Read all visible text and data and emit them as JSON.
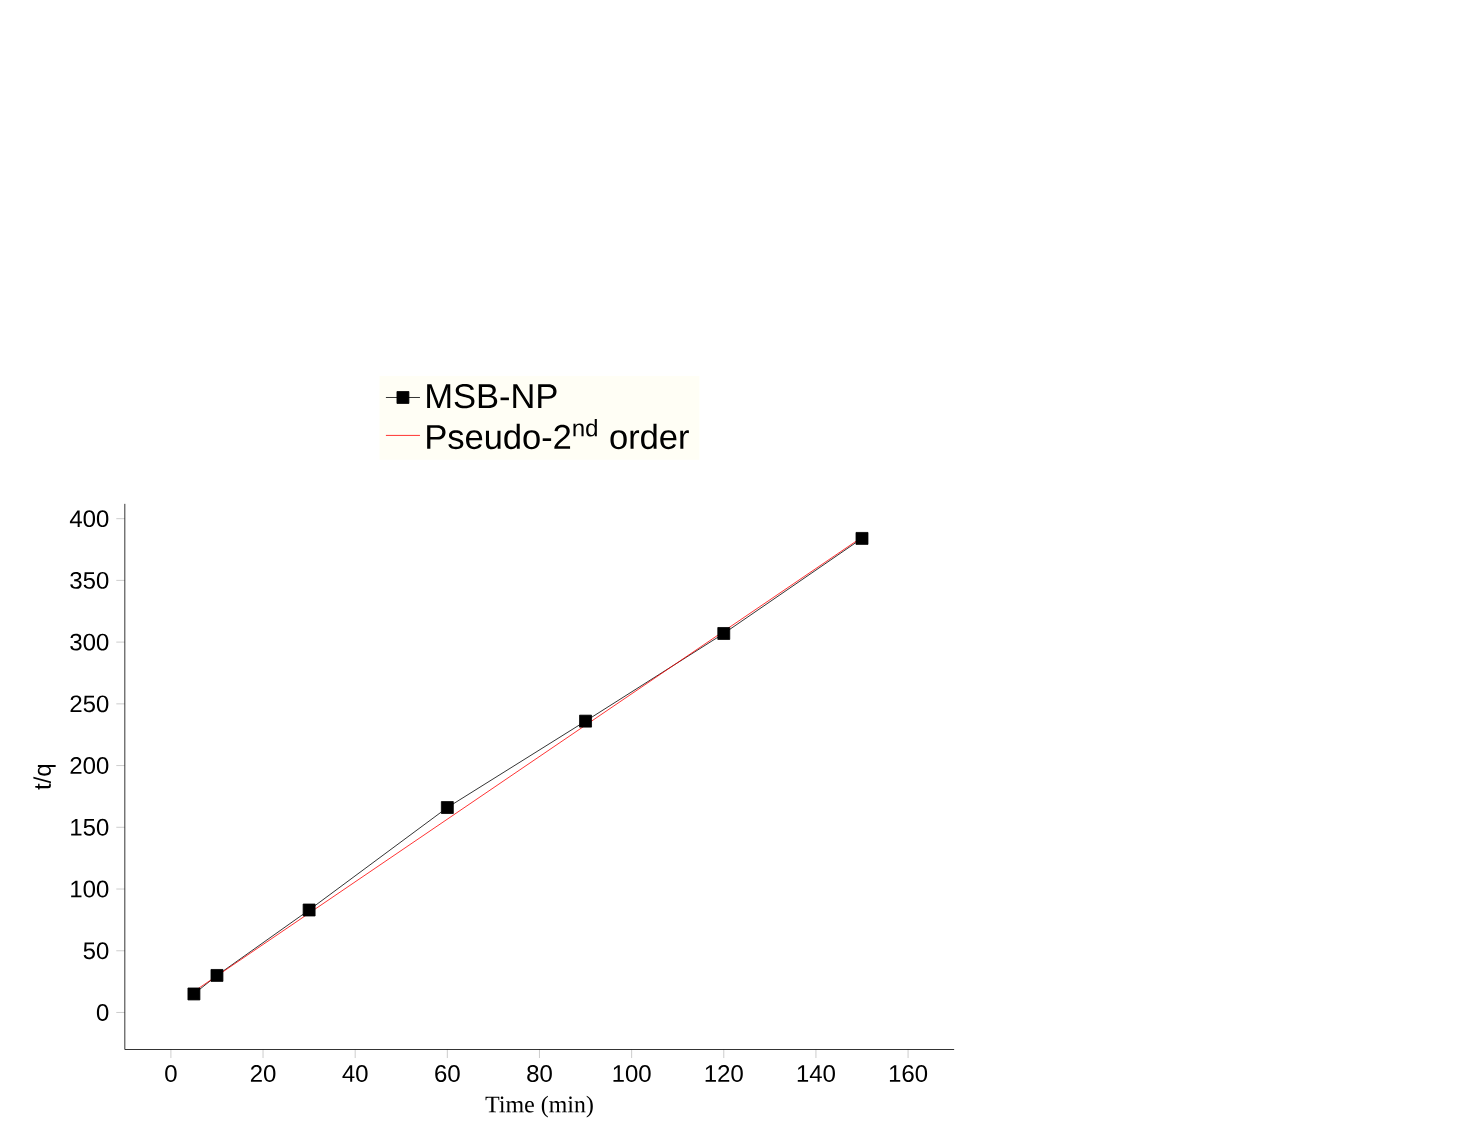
{
  "chart_data": {
    "type": "line",
    "xlabel": "Time (min)",
    "ylabel": "t/q",
    "series": [
      {
        "name": "MSB-NP",
        "color": "#000000",
        "marker": "square",
        "x": [
          5,
          10,
          30,
          60,
          90,
          120,
          150
        ],
        "values": [
          15,
          30,
          83,
          166,
          236,
          307,
          384
        ]
      },
      {
        "name": "Pseudo-2$^{nd}$ order",
        "color": "#ff0000",
        "marker": "none",
        "x": [
          5,
          150
        ],
        "values": [
          17,
          385
        ]
      }
    ],
    "xlim": [
      -10,
      170
    ],
    "xticks": [
      0,
      20,
      40,
      60,
      80,
      100,
      120,
      140,
      160
    ],
    "ylim": [
      -30,
      412
    ],
    "yticks": [
      0,
      50,
      100,
      150,
      200,
      250,
      300,
      350,
      400
    ],
    "grid": false,
    "legend": "top"
  }
}
